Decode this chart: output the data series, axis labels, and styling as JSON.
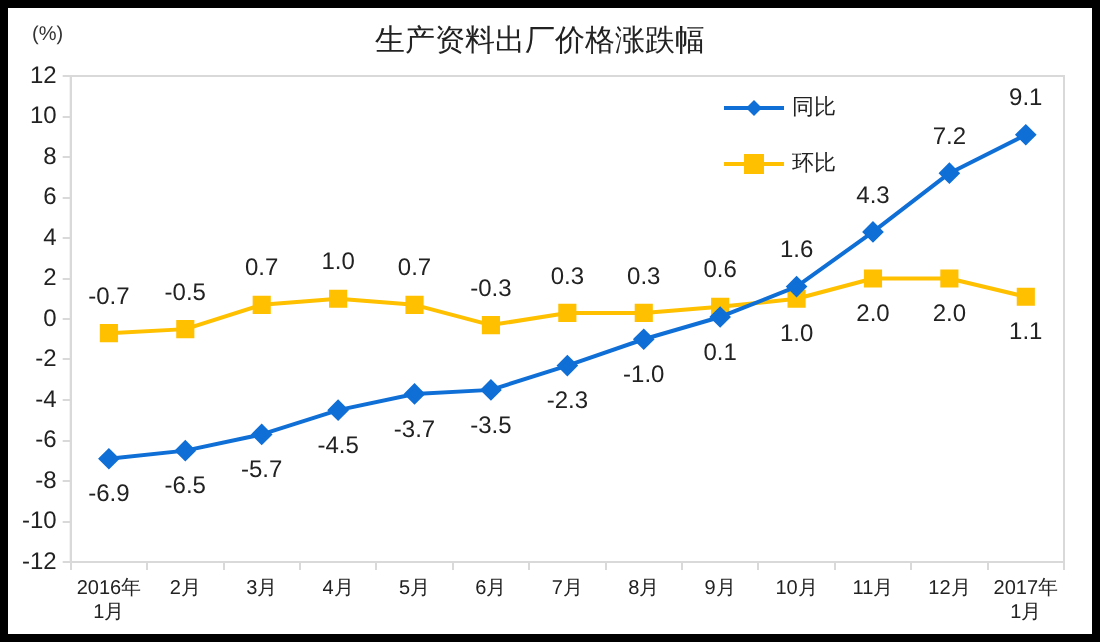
{
  "chart_data": {
    "type": "line",
    "title": "生产资料出厂价格涨跌幅",
    "ylabel": "(%)",
    "categories": [
      "2016年\n1月",
      "2月",
      "3月",
      "4月",
      "5月",
      "6月",
      "7月",
      "8月",
      "9月",
      "10月",
      "11月",
      "12月",
      "2017年\n1月"
    ],
    "series": [
      {
        "name": "同比",
        "color": "#0f6fd6",
        "marker": "diamond",
        "values": [
          -6.9,
          -6.5,
          -5.7,
          -4.5,
          -3.7,
          -3.5,
          -2.3,
          -1.0,
          0.1,
          1.6,
          4.3,
          7.2,
          9.1
        ],
        "value_labels": [
          "-6.9",
          "-6.5",
          "-5.7",
          "-4.5",
          "-3.7",
          "-3.5",
          "-2.3",
          "-1.0",
          "0.1",
          "1.6",
          "4.3",
          "7.2",
          "9.1"
        ]
      },
      {
        "name": "环比",
        "color": "#ffc000",
        "marker": "square",
        "values": [
          -0.7,
          -0.5,
          0.7,
          1.0,
          0.7,
          -0.3,
          0.3,
          0.3,
          0.6,
          1.0,
          2.0,
          2.0,
          1.1
        ],
        "value_labels": [
          "-0.7",
          "-0.5",
          "0.7",
          "1.0",
          "0.7",
          "-0.3",
          "0.3",
          "0.3",
          "0.6",
          "1.0",
          "2.0",
          "2.0",
          "1.1"
        ]
      }
    ],
    "ylim": [
      -12,
      12
    ],
    "yticks": [
      -12,
      -10,
      -8,
      -6,
      -4,
      -2,
      0,
      2,
      4,
      6,
      8,
      10,
      12
    ],
    "grid": false,
    "legend": "top right",
    "line_style": "solid"
  }
}
